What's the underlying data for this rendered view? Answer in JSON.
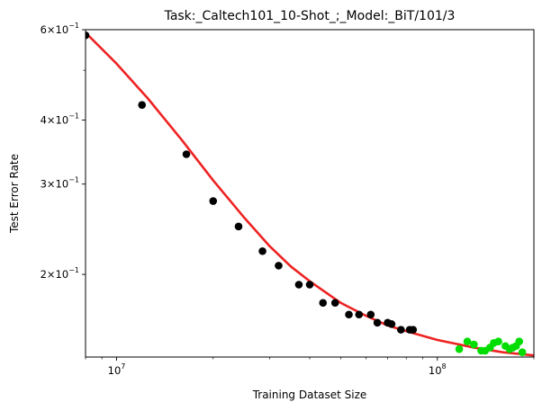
{
  "chart_data": {
    "type": "scatter",
    "title": "Task:_Caltech101_10-Shot_;_Model:_BiT/101/3",
    "xlabel": "Training Dataset Size",
    "ylabel": "Test Error Rate",
    "x_scale": "log",
    "y_scale": "log",
    "xlim": [
      8000000,
      200000000
    ],
    "ylim": [
      0.138,
      0.6
    ],
    "grid": false,
    "colors": {
      "observed": "#000000",
      "held_out": "#00dd00",
      "fit": "#ee2222"
    },
    "x_ticks": [
      {
        "value": 10000000,
        "base": "10",
        "exp": "7"
      },
      {
        "value": 100000000,
        "base": "10",
        "exp": "8"
      }
    ],
    "y_ticks": [
      {
        "value": 0.6,
        "mant": "6",
        "exp": "−1"
      },
      {
        "value": 0.4,
        "mant": "4",
        "exp": "−1"
      },
      {
        "value": 0.3,
        "mant": "3",
        "exp": "−1"
      },
      {
        "value": 0.2,
        "mant": "2",
        "exp": "−1"
      }
    ],
    "series": [
      {
        "kind": "scatter",
        "color": "#000000",
        "points": [
          {
            "x": 8000000,
            "y": 0.585
          },
          {
            "x": 12000000,
            "y": 0.428
          },
          {
            "x": 16500000,
            "y": 0.343
          },
          {
            "x": 20000000,
            "y": 0.278
          },
          {
            "x": 24000000,
            "y": 0.248
          },
          {
            "x": 28500000,
            "y": 0.222
          },
          {
            "x": 32000000,
            "y": 0.208
          },
          {
            "x": 37000000,
            "y": 0.191
          },
          {
            "x": 40000000,
            "y": 0.191
          },
          {
            "x": 44000000,
            "y": 0.176
          },
          {
            "x": 48000000,
            "y": 0.176
          },
          {
            "x": 53000000,
            "y": 0.167
          },
          {
            "x": 57000000,
            "y": 0.167
          },
          {
            "x": 62000000,
            "y": 0.167
          },
          {
            "x": 65000000,
            "y": 0.161
          },
          {
            "x": 70000000,
            "y": 0.161
          },
          {
            "x": 72000000,
            "y": 0.16
          },
          {
            "x": 77000000,
            "y": 0.156
          },
          {
            "x": 82000000,
            "y": 0.156
          },
          {
            "x": 84000000,
            "y": 0.156
          }
        ]
      },
      {
        "kind": "scatter",
        "color": "#00dd00",
        "points": [
          {
            "x": 117000000,
            "y": 0.143
          },
          {
            "x": 124000000,
            "y": 0.148
          },
          {
            "x": 130000000,
            "y": 0.146
          },
          {
            "x": 137000000,
            "y": 0.142
          },
          {
            "x": 141000000,
            "y": 0.142
          },
          {
            "x": 146000000,
            "y": 0.144
          },
          {
            "x": 150000000,
            "y": 0.147
          },
          {
            "x": 155000000,
            "y": 0.148
          },
          {
            "x": 163000000,
            "y": 0.145
          },
          {
            "x": 168000000,
            "y": 0.143
          },
          {
            "x": 172000000,
            "y": 0.144
          },
          {
            "x": 176000000,
            "y": 0.145
          },
          {
            "x": 180000000,
            "y": 0.148
          },
          {
            "x": 184000000,
            "y": 0.141
          }
        ]
      },
      {
        "kind": "line",
        "color": "#ee2222",
        "points": [
          {
            "x": 8000000,
            "y": 0.592
          },
          {
            "x": 10000000,
            "y": 0.515
          },
          {
            "x": 12500000,
            "y": 0.441
          },
          {
            "x": 16000000,
            "y": 0.365
          },
          {
            "x": 20000000,
            "y": 0.305
          },
          {
            "x": 25000000,
            "y": 0.258
          },
          {
            "x": 30000000,
            "y": 0.227
          },
          {
            "x": 35000000,
            "y": 0.207
          },
          {
            "x": 40000000,
            "y": 0.194
          },
          {
            "x": 50000000,
            "y": 0.176
          },
          {
            "x": 60000000,
            "y": 0.166
          },
          {
            "x": 70000000,
            "y": 0.159
          },
          {
            "x": 80000000,
            "y": 0.155
          },
          {
            "x": 100000000,
            "y": 0.149
          },
          {
            "x": 130000000,
            "y": 0.144
          },
          {
            "x": 160000000,
            "y": 0.141
          },
          {
            "x": 200000000,
            "y": 0.139
          }
        ]
      }
    ]
  }
}
